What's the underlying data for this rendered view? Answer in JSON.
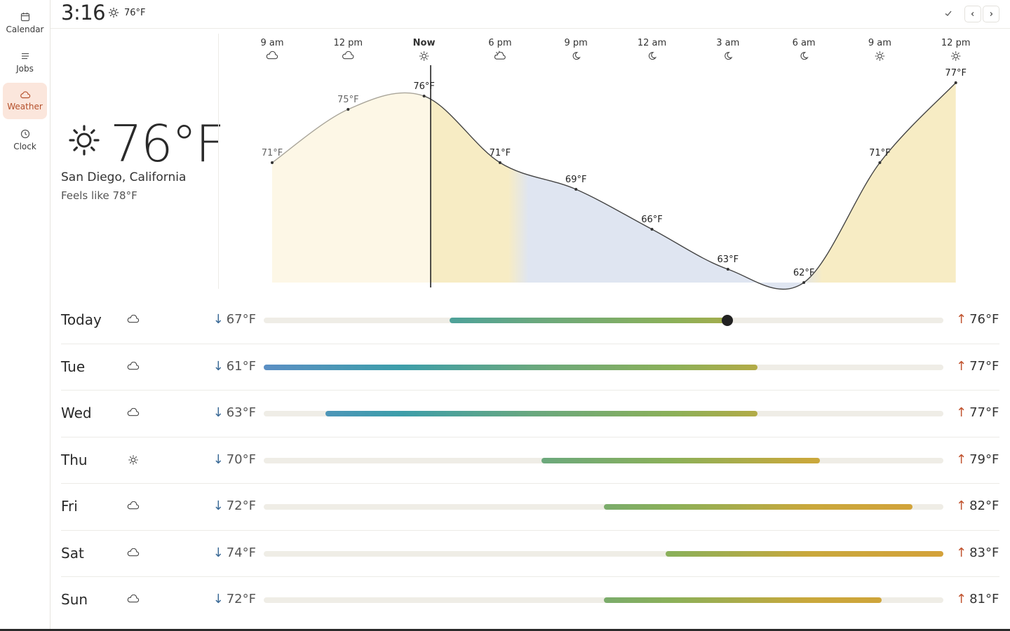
{
  "sidebar": {
    "items": [
      {
        "label": "Calendar",
        "icon": "calendar-icon",
        "active": false
      },
      {
        "label": "Jobs",
        "icon": "list-icon",
        "active": false
      },
      {
        "label": "Weather",
        "icon": "cloud-icon",
        "active": true
      },
      {
        "label": "Clock",
        "icon": "clock-icon",
        "active": false
      }
    ]
  },
  "header": {
    "time": "3:16",
    "temp": "76°F",
    "icon": "sun-icon"
  },
  "current": {
    "temp": "76°F",
    "location": "San Diego, California",
    "feels_like": "Feels like 78°F",
    "icon": "sun-icon"
  },
  "hourly": [
    {
      "time": "9 am",
      "icon": "cloud",
      "temp": "71°F",
      "value": 71
    },
    {
      "time": "12 pm",
      "icon": "cloud",
      "temp": "75°F",
      "value": 75
    },
    {
      "time": "Now",
      "icon": "sun",
      "temp": "76°F",
      "value": 76
    },
    {
      "time": "6 pm",
      "icon": "sun-cloud",
      "temp": "71°F",
      "value": 71
    },
    {
      "time": "9 pm",
      "icon": "moon",
      "temp": "69°F",
      "value": 69
    },
    {
      "time": "12 am",
      "icon": "moon",
      "temp": "66°F",
      "value": 66
    },
    {
      "time": "3 am",
      "icon": "moon",
      "temp": "63°F",
      "value": 63
    },
    {
      "time": "6 am",
      "icon": "moon",
      "temp": "62°F",
      "value": 62
    },
    {
      "time": "9 am",
      "icon": "sun",
      "temp": "71°F",
      "value": 71
    },
    {
      "time": "12 pm",
      "icon": "sun",
      "temp": "77°F",
      "value": 77
    }
  ],
  "daily": [
    {
      "day": "Today",
      "icon": "cloud",
      "low": "67°F",
      "high": "76°F",
      "range_start": 0.273,
      "range_end": 0.682,
      "now": 0.682
    },
    {
      "day": "Tue",
      "icon": "cloud",
      "low": "61°F",
      "high": "77°F",
      "range_start": 0.0,
      "range_end": 0.727
    },
    {
      "day": "Wed",
      "icon": "cloud",
      "low": "63°F",
      "high": "77°F",
      "range_start": 0.091,
      "range_end": 0.727
    },
    {
      "day": "Thu",
      "icon": "sun",
      "low": "70°F",
      "high": "79°F",
      "range_start": 0.409,
      "range_end": 0.818
    },
    {
      "day": "Fri",
      "icon": "cloud",
      "low": "72°F",
      "high": "82°F",
      "range_start": 0.5,
      "range_end": 0.955
    },
    {
      "day": "Sat",
      "icon": "cloud",
      "low": "74°F",
      "high": "83°F",
      "range_start": 0.591,
      "range_end": 1.0
    },
    {
      "day": "Sun",
      "icon": "cloud",
      "low": "72°F",
      "high": "81°F",
      "range_start": 0.5,
      "range_end": 0.909
    }
  ],
  "colors": {
    "accent": "#b5502b",
    "day_fill_past": "#fdf7e6",
    "day_fill": "#f7ecc4",
    "night_fill": "#dfe5f1"
  }
}
